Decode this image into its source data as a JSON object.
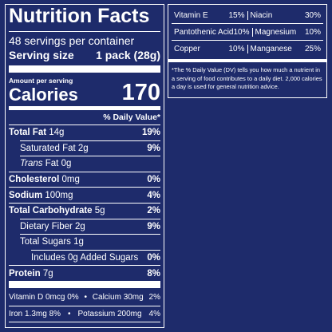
{
  "title": "Nutrition Facts",
  "servings": "48 servings per container",
  "serving_size_label": "Serving size",
  "serving_size": "1 pack (28g)",
  "amount_per_serving": "Amount per serving",
  "calories_label": "Calories",
  "calories": "170",
  "daily_value_header": "% Daily Value*",
  "nutrients": [
    {
      "name": "Total Fat",
      "amount": "14g",
      "dv": "19%"
    },
    {
      "name": "Saturated Fat",
      "amount": "2g",
      "dv": "9%"
    },
    {
      "name_italic": "Trans",
      "name": "Fat",
      "amount": "0g"
    },
    {
      "name": "Cholesterol",
      "amount": "0mg",
      "dv": "0%"
    },
    {
      "name": "Sodium",
      "amount": "100mg",
      "dv": "4%"
    },
    {
      "name": "Total Carbohydrate",
      "amount": "5g",
      "dv": "2%"
    },
    {
      "name": "Dietary Fiber",
      "amount": "2g",
      "dv": "9%"
    },
    {
      "name": "Total Sugars",
      "amount": "1g"
    },
    {
      "name": "Includes 0g Added Sugars",
      "dv": "0%"
    },
    {
      "name": "Protein",
      "amount": "7g",
      "dv": "8%"
    }
  ],
  "minerals": [
    [
      {
        "name": "Vitamin D",
        "amount": "0mcg",
        "dv": "0%"
      },
      {
        "name": "Calcium",
        "amount": "30mg",
        "dv": "2%"
      }
    ],
    [
      {
        "name": "Iron",
        "amount": "1.3mg",
        "dv": "8%"
      },
      {
        "name": "Potassium",
        "amount": "200mg",
        "dv": "4%"
      }
    ]
  ],
  "vitamins": [
    [
      {
        "name": "Vitamin E",
        "dv": "15%"
      },
      {
        "name": "Niacin",
        "dv": "30%"
      }
    ],
    [
      {
        "name": "Pantothenic Acid",
        "dv": "10%"
      },
      {
        "name": "Magnesium",
        "dv": "10%"
      }
    ],
    [
      {
        "name": "Copper",
        "dv": "10%"
      },
      {
        "name": "Manganese",
        "dv": "25%"
      }
    ]
  ],
  "footnote": "*The % Daily Value (DV) tells you how much a nutrient in a serving of food contributes to a daily diet. 2,000 calories a day is used for general nutrition advice."
}
